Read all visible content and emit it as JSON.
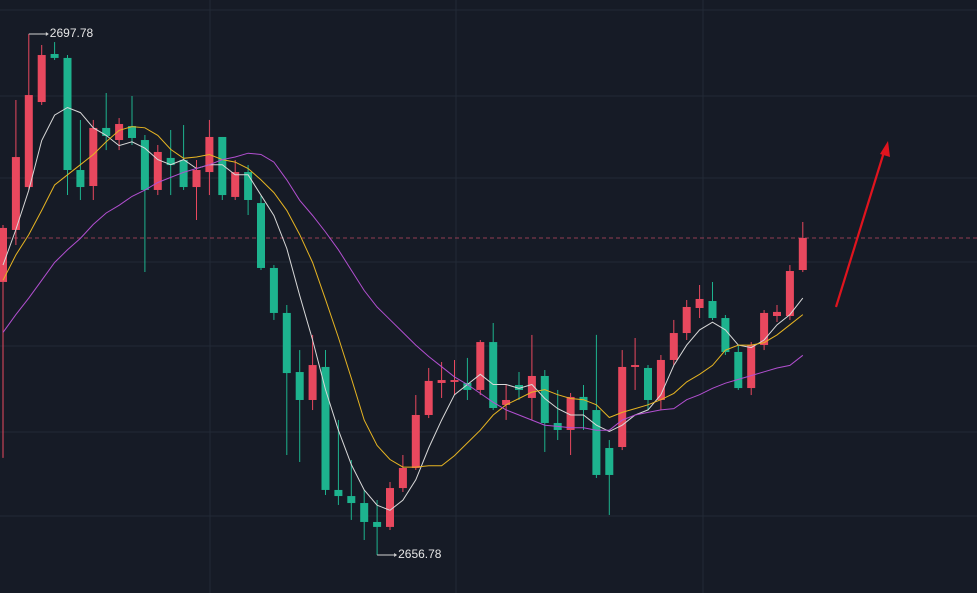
{
  "chart_data": {
    "type": "candlestick",
    "categories": [
      null,
      null,
      null,
      null,
      null,
      null,
      null,
      null,
      null,
      null,
      null,
      null,
      null,
      null,
      null,
      null,
      null,
      null,
      null,
      null,
      null,
      null,
      null,
      null,
      null,
      null,
      null,
      null,
      null,
      null,
      null,
      null,
      null,
      null,
      null,
      null,
      null,
      null,
      null,
      null,
      null,
      null,
      null,
      null,
      null,
      null,
      null,
      null,
      null,
      null,
      null,
      null,
      null,
      null,
      null,
      null,
      null,
      null,
      null,
      null,
      null,
      null,
      null
    ],
    "open": [
      2678.27,
      2682.36,
      2685.74,
      2692.43,
      2696.21,
      2695.9,
      2687.08,
      2685.82,
      2690.39,
      2689.44,
      2690.54,
      2689.44,
      2685.51,
      2688.03,
      2687.87,
      2685.74,
      2686.92,
      2689.68,
      2684.96,
      2686.92,
      2684.48,
      2679.37,
      2675.83,
      2671.18,
      2668.98,
      2671.58,
      2661.9,
      2661.42,
      2660.87,
      2659.38,
      2658.99,
      2662.05,
      2663.63,
      2667.8,
      2670.32,
      2670.4,
      2670.32,
      2669.77,
      2673.54,
      2668.59,
      2670.16,
      2669.14,
      2670.87,
      2667.17,
      2666.62,
      2669.22,
      2668.19,
      2665.2,
      2665.28,
      2671.58,
      2671.5,
      2668.98,
      2672.13,
      2674.25,
      2676.22,
      2676.77,
      2675.43,
      2672.76,
      2669.92,
      2673.31,
      2675.59,
      2675.59,
      2679.21
    ],
    "high": [
      2682.75,
      2692.59,
      2697.78,
      2696.92,
      2697.15,
      2696.13,
      2691.02,
      2691.02,
      2693.14,
      2691.17,
      2692.9,
      2689.84,
      2689.05,
      2690.23,
      2690.62,
      2687.87,
      2691.02,
      2689.68,
      2687.87,
      2687.47,
      2685.11,
      2679.6,
      2676.46,
      2672.91,
      2674.1,
      2672.91,
      2667.41,
      2664.26,
      2661.9,
      2661.11,
      2662.53,
      2664.65,
      2669.37,
      2671.5,
      2671.97,
      2672.13,
      2672.29,
      2673.7,
      2675.04,
      2670.16,
      2671.18,
      2674.1,
      2671.34,
      2669.77,
      2669.53,
      2670.16,
      2674.1,
      2665.83,
      2672.91,
      2673.86,
      2671.73,
      2672.52,
      2675.28,
      2676.85,
      2678.03,
      2678.27,
      2675.67,
      2673.31,
      2673.54,
      2676.06,
      2676.46,
      2679.6,
      2682.99
    ],
    "low": [
      2664.42,
      2681.18,
      2685.51,
      2692.2,
      2695.74,
      2685.11,
      2684.72,
      2684.72,
      2688.65,
      2688.65,
      2689.05,
      2679.05,
      2685.11,
      2685.11,
      2685.51,
      2683.15,
      2685.11,
      2684.72,
      2684.72,
      2683.54,
      2679.21,
      2675.28,
      2664.65,
      2664.1,
      2668.19,
      2661.5,
      2660.72,
      2659.54,
      2657.96,
      2656.78,
      2658.75,
      2661.74,
      2663.47,
      2667.56,
      2669.14,
      2669.37,
      2668.98,
      2669.37,
      2668.19,
      2667.41,
      2668.98,
      2667.41,
      2664.89,
      2665.83,
      2664.65,
      2666.62,
      2662.84,
      2659.93,
      2665.04,
      2669.77,
      2668.19,
      2668.19,
      2671.73,
      2673.7,
      2675.43,
      2675.28,
      2672.52,
      2669.77,
      2669.37,
      2672.91,
      2675.12,
      2675.28,
      2679.05
    ],
    "close": [
      2682.52,
      2688.1,
      2692.98,
      2696.13,
      2695.9,
      2687.08,
      2685.74,
      2690.39,
      2689.76,
      2690.7,
      2689.6,
      2685.51,
      2688.5,
      2687.47,
      2685.74,
      2687.08,
      2689.68,
      2685.11,
      2686.92,
      2684.72,
      2679.37,
      2675.83,
      2671.1,
      2668.98,
      2671.73,
      2661.9,
      2661.42,
      2660.87,
      2659.38,
      2658.99,
      2662.05,
      2663.63,
      2667.8,
      2670.48,
      2670.55,
      2670.55,
      2669.77,
      2673.54,
      2668.35,
      2668.98,
      2669.77,
      2670.87,
      2667.17,
      2666.62,
      2669.22,
      2668.19,
      2663.08,
      2663.08,
      2671.58,
      2671.73,
      2668.98,
      2672.13,
      2674.25,
      2676.3,
      2676.93,
      2675.43,
      2672.76,
      2669.92,
      2673.31,
      2675.83,
      2675.91,
      2679.13,
      2681.73
    ],
    "up_color": "#e8485e",
    "down_color": "#1db38e",
    "lines": [
      {
        "color": "#d8d8d8",
        "values": [
          2679.6,
          2682.4,
          2685.5,
          2689.4,
          2691.4,
          2692.0,
          2691.6,
          2690.4,
          2689.8,
          2689.0,
          2689.3,
          2688.8,
          2687.9,
          2687.5,
          2687.9,
          2687.2,
          2687.5,
          2687.5,
          2686.7,
          2686.7,
          2685.1,
          2683.5,
          2680.9,
          2677.2,
          2673.7,
          2669.8,
          2666.6,
          2663.9,
          2661.9,
          2660.7,
          2660.3,
          2661.1,
          2662.7,
          2665.2,
          2667.4,
          2669.4,
          2670.2,
          2671.0,
          2670.2,
          2670.2,
          2669.9,
          2670.2,
          2669.1,
          2668.3,
          2667.8,
          2667.8,
          2667.0,
          2666.5,
          2667.0,
          2667.8,
          2668.2,
          2669.4,
          2671.7,
          2673.3,
          2674.5,
          2675.1,
          2674.5,
          2673.3,
          2673.1,
          2673.7,
          2674.9,
          2675.7,
          2677.0
        ]
      },
      {
        "color": "#e6b422",
        "values": [
          2678.4,
          2680.4,
          2682.0,
          2683.9,
          2685.9,
          2686.7,
          2687.5,
          2688.3,
          2689.3,
          2690.2,
          2690.5,
          2690.4,
          2689.8,
          2688.7,
          2688.0,
          2688.1,
          2688.3,
          2687.9,
          2687.7,
          2687.2,
          2686.3,
          2685.3,
          2683.9,
          2682.0,
          2679.8,
          2676.9,
          2673.9,
          2670.7,
          2667.4,
          2665.4,
          2664.3,
          2663.7,
          2663.7,
          2663.8,
          2663.8,
          2664.6,
          2665.6,
          2666.6,
          2667.8,
          2668.6,
          2669.1,
          2669.6,
          2669.8,
          2669.4,
          2669.1,
          2669.0,
          2668.6,
          2667.6,
          2668.0,
          2668.3,
          2668.6,
          2669.0,
          2669.5,
          2670.4,
          2671.0,
          2671.7,
          2672.9,
          2673.3,
          2673.3,
          2673.5,
          2674.1,
          2674.9,
          2675.7
        ]
      },
      {
        "color": "#b24fd0",
        "values": [
          2674.3,
          2675.7,
          2677.0,
          2678.4,
          2679.8,
          2680.8,
          2681.7,
          2682.8,
          2683.7,
          2684.3,
          2685.0,
          2685.5,
          2686.1,
          2686.5,
          2686.9,
          2687.2,
          2687.5,
          2687.9,
          2688.1,
          2688.4,
          2688.3,
          2687.7,
          2686.3,
          2684.7,
          2683.5,
          2682.2,
          2680.8,
          2679.2,
          2677.6,
          2676.3,
          2675.3,
          2674.3,
          2673.3,
          2672.4,
          2671.6,
          2670.8,
          2670.2,
          2669.5,
          2668.8,
          2668.2,
          2667.8,
          2667.4,
          2667.0,
          2666.9,
          2666.8,
          2666.8,
          2666.6,
          2666.6,
          2667.4,
          2667.8,
          2668.0,
          2668.2,
          2668.3,
          2669.0,
          2669.4,
          2669.9,
          2670.3,
          2670.6,
          2670.9,
          2671.2,
          2671.5,
          2671.7,
          2672.5
        ]
      }
    ],
    "annotations": [
      2697.78,
      2656.78
    ],
    "ylim": [
      2653.79,
      2700.46
    ]
  }
}
